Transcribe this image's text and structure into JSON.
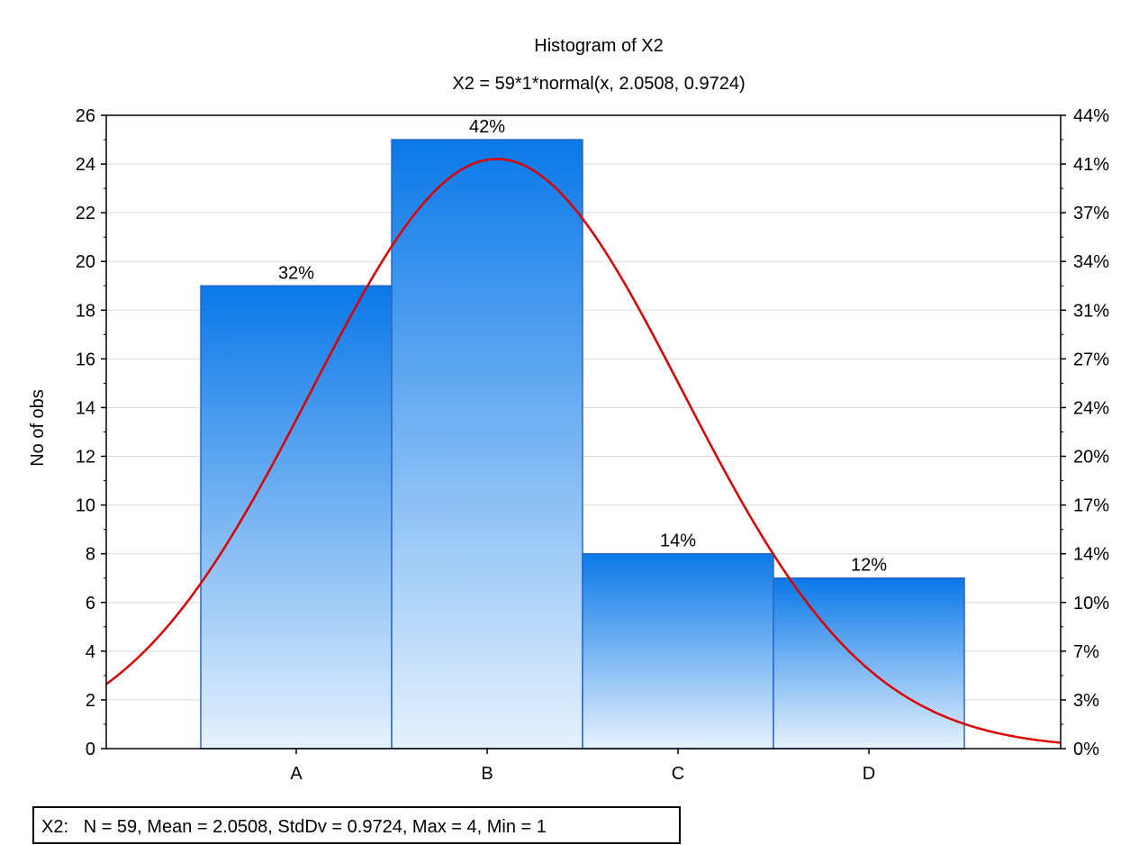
{
  "chart_data": {
    "type": "bar",
    "title": "Histogram of X2",
    "subtitle": "X2 = 59*1*normal(x, 2.0508, 0.9724)",
    "ylabel": "No of obs",
    "xlabel": "",
    "categories": [
      "A",
      "B",
      "C",
      "D"
    ],
    "values": [
      19,
      25,
      8,
      7
    ],
    "bar_labels": [
      "32%",
      "42%",
      "14%",
      "12%"
    ],
    "ylim": [
      0,
      26
    ],
    "y_ticks": [
      "0",
      "2",
      "4",
      "6",
      "8",
      "10",
      "12",
      "14",
      "16",
      "18",
      "20",
      "22",
      "24",
      "26"
    ],
    "y2_ticks": [
      "0%",
      "3%",
      "7%",
      "10%",
      "14%",
      "17%",
      "20%",
      "24%",
      "27%",
      "31%",
      "34%",
      "37%",
      "41%",
      "44%"
    ],
    "grid": true,
    "fit_curve": {
      "type": "normal",
      "n": 59,
      "bin_width": 1,
      "mean": 2.0508,
      "stddev": 0.9724,
      "color": "#dd0000"
    },
    "bar_color_top": "#0a78e8",
    "bar_color_bottom": "#e6f2fd",
    "bar_border": "#2b66c6",
    "stats_label": "X2:   N = 59, Mean = 2.0508, StdDv = 0.9724, Max = 4, Min = 1"
  }
}
